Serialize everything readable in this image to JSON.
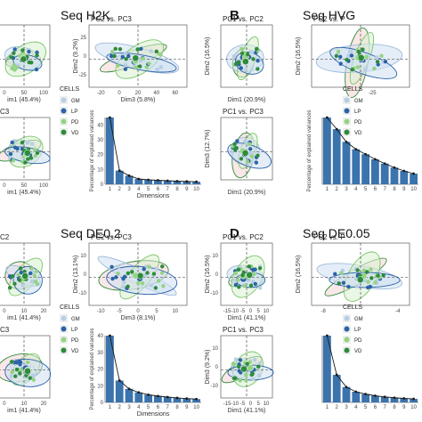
{
  "colors": {
    "GM": "#b8cde6",
    "LP": "#2b63a8",
    "PD": "#93d383",
    "VD": "#2e8b3a",
    "bar": "#3b73ad",
    "line": "#1a1a1a"
  },
  "panels": [
    {
      "letter": "",
      "title": "Seq H2K",
      "legend": {
        "title": "CELLS",
        "items": [
          "GM",
          "LP",
          "PD",
          "VD"
        ]
      },
      "plots": [
        {
          "subtitle": "",
          "xlabel": "im1 (45.4%)",
          "ylabel": "",
          "xticks": [
            "0",
            "50",
            "100"
          ],
          "yticks": []
        },
        {
          "subtitle": "PC2 vs. PC3",
          "xlabel": "Dim3 (5.8%)",
          "ylabel": "Dim2 (9.2%)",
          "xticks": [
            "-20",
            "0",
            "20",
            "40",
            "60"
          ],
          "yticks": [
            "25",
            "0",
            "-25"
          ]
        },
        {
          "subtitle": "C3",
          "xlabel": "im1 (45.4%)",
          "ylabel": "",
          "xticks": [
            "0",
            "50",
            "100"
          ],
          "yticks": []
        }
      ],
      "scree": {
        "ylabel": "Percentage of explained variances",
        "xlabel": "Dimensions",
        "ylim": [
          0,
          40
        ],
        "yticks": [
          "0",
          "10",
          "20",
          "30",
          "40"
        ]
      }
    },
    {
      "letter": "B",
      "title": "Seq HVG",
      "legend": {
        "title": "CELLS",
        "items": [
          "GM",
          "LP",
          "PD",
          "VD"
        ]
      },
      "plots": [
        {
          "subtitle": "PC1 vs. PC2",
          "xlabel": "Dim1 (20.9%)",
          "ylabel": "Dim2 (16.5%)",
          "xticks": [],
          "yticks": []
        },
        {
          "subtitle": "PC2 vs. P",
          "xlabel": "",
          "ylabel": "Dim2 (16.5%)",
          "xticks": [
            "-25"
          ],
          "yticks": []
        },
        {
          "subtitle": "PC1 vs. PC3",
          "xlabel": "Dim1 (20.9%)",
          "ylabel": "Dim3 (12.7%)",
          "xticks": [],
          "yticks": []
        }
      ],
      "scree": {
        "ylabel": "Percentage of explained variances",
        "xlabel": "",
        "ylim": [
          0,
          20
        ],
        "yticks": []
      }
    },
    {
      "letter": "",
      "title": "Seq DE0.2",
      "legend": {
        "title": "CELLS",
        "items": [
          "GM",
          "LP",
          "PD",
          "VD"
        ]
      },
      "plots": [
        {
          "subtitle": "C2",
          "xlabel": "im1 (41.4%)",
          "ylabel": "",
          "xticks": [
            "0",
            "10",
            "20"
          ],
          "yticks": []
        },
        {
          "subtitle": "PC2 vs. PC3",
          "xlabel": "Dim3 (8.1%)",
          "ylabel": "Dim2 (13.1%)",
          "xticks": [
            "-10",
            "-5",
            "0",
            "5",
            "10"
          ],
          "yticks": [
            "10",
            "0",
            "-10"
          ]
        },
        {
          "subtitle": "C3",
          "xlabel": "im1 (41.4%)",
          "ylabel": "",
          "xticks": [
            "0",
            "10",
            "20"
          ],
          "yticks": []
        }
      ],
      "scree": {
        "ylabel": "Percentage of explained variances",
        "xlabel": "Dimensions",
        "ylim": [
          0,
          40
        ],
        "yticks": [
          "0",
          "10",
          "20",
          "30",
          "40"
        ]
      }
    },
    {
      "letter": "D",
      "title": "Seq DE0.05",
      "legend": {
        "title": "CELLS",
        "items": [
          "GM",
          "LP",
          "PD",
          "VD"
        ]
      },
      "plots": [
        {
          "subtitle": "PC1 vs. PC2",
          "xlabel": "Dim1 (41.1%)",
          "ylabel": "Dim2 (16.5%)",
          "xticks": [
            "-15",
            "-10",
            "-5",
            "0",
            "5",
            "10"
          ],
          "yticks": [
            "10",
            "0",
            "-10"
          ]
        },
        {
          "subtitle": "PC2 vs. P",
          "xlabel": "",
          "ylabel": "Dim2 (16.5%)",
          "xticks": [
            "-8",
            "-4"
          ],
          "yticks": []
        },
        {
          "subtitle": "PC1 vs. PC3",
          "xlabel": "Dim1 (41.1%)",
          "ylabel": "Dim3 (9.2%)",
          "xticks": [
            "-15",
            "-10",
            "-5",
            "0",
            "5",
            "10"
          ],
          "yticks": [
            "10",
            "0",
            "-10"
          ]
        }
      ],
      "scree": {
        "ylabel": "",
        "xlabel": "",
        "ylim": [
          0,
          40
        ],
        "yticks": []
      }
    }
  ],
  "chart_data": [
    {
      "type": "scatter",
      "title": "Seq H2K",
      "series": [
        {
          "name": "GM",
          "values": []
        },
        {
          "name": "LP",
          "values": []
        },
        {
          "name": "PD",
          "values": []
        },
        {
          "name": "VD",
          "values": []
        }
      ]
    },
    {
      "type": "bar",
      "ylabel": "Percentage of explained variances",
      "xlabel": "Dimensions",
      "categories": [
        "1",
        "2",
        "3",
        "4",
        "5",
        "6",
        "7",
        "8",
        "9",
        "10"
      ],
      "values": [
        45.4,
        9.2,
        5.8,
        3.6,
        3.0,
        2.7,
        2.4,
        2.1,
        1.9,
        1.7
      ],
      "ylim": [
        0,
        45
      ]
    },
    {
      "type": "scatter",
      "title": "Seq HVG",
      "series": [
        {
          "name": "GM",
          "values": []
        },
        {
          "name": "LP",
          "values": []
        },
        {
          "name": "PD",
          "values": []
        },
        {
          "name": "VD",
          "values": []
        }
      ]
    },
    {
      "type": "bar",
      "ylabel": "Percentage of explained variances",
      "categories": [
        "1",
        "2",
        "3",
        "4",
        "5",
        "6",
        "7",
        "8",
        "9",
        "10"
      ],
      "values": [
        20.9,
        16.5,
        12.7,
        10.5,
        9.0,
        7.5,
        6.2,
        5.0,
        4.0,
        3.2
      ],
      "ylim": [
        0,
        20
      ]
    },
    {
      "type": "scatter",
      "title": "Seq DE0.2",
      "series": [
        {
          "name": "GM",
          "values": []
        },
        {
          "name": "LP",
          "values": []
        },
        {
          "name": "PD",
          "values": []
        },
        {
          "name": "VD",
          "values": []
        }
      ]
    },
    {
      "type": "bar",
      "ylabel": "Percentage of explained variances",
      "xlabel": "Dimensions",
      "categories": [
        "1",
        "2",
        "3",
        "4",
        "5",
        "6",
        "7",
        "8",
        "9",
        "10"
      ],
      "values": [
        41.4,
        13.1,
        8.1,
        6.0,
        4.6,
        3.8,
        3.2,
        2.7,
        2.3,
        2.0
      ],
      "ylim": [
        0,
        40
      ]
    },
    {
      "type": "scatter",
      "title": "Seq DE0.05",
      "series": [
        {
          "name": "GM",
          "values": []
        },
        {
          "name": "LP",
          "values": []
        },
        {
          "name": "PD",
          "values": []
        },
        {
          "name": "VD",
          "values": []
        }
      ]
    },
    {
      "type": "bar",
      "categories": [
        "1",
        "2",
        "3",
        "4",
        "5",
        "6",
        "7",
        "8",
        "9",
        "10"
      ],
      "values": [
        41.1,
        16.5,
        9.2,
        6.4,
        5.0,
        4.0,
        3.3,
        2.8,
        2.4,
        2.1
      ],
      "ylim": [
        0,
        40
      ]
    }
  ]
}
